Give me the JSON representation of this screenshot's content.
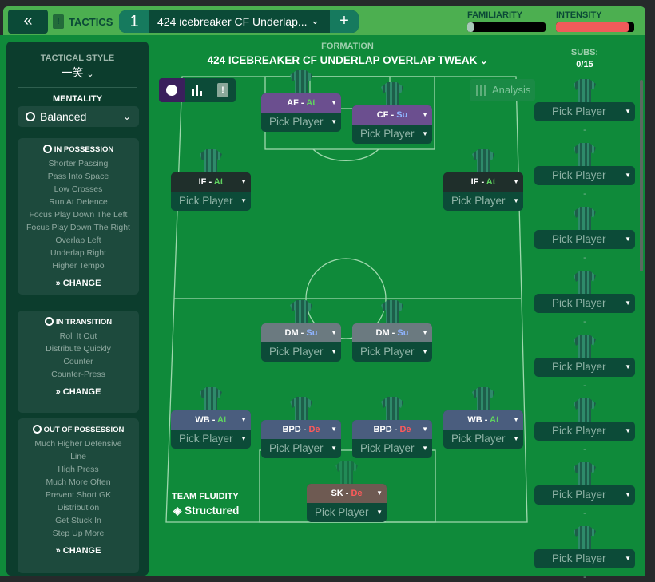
{
  "topbar": {
    "back_icon": "double-chevron-left",
    "tactics_label": "TACTICS",
    "tactic_number": "1",
    "tactic_name": "424 icebreaker CF Underlap...",
    "add_icon": "+",
    "familiarity_label": "FAMILIARITY",
    "familiarity_value": 0.08,
    "intensity_label": "INTENSITY",
    "intensity_value": 0.93,
    "intensity_color": "#f05a5a"
  },
  "left": {
    "tactical_style_label": "TACTICAL STYLE",
    "tactical_style_value": "一笑",
    "mentality_label": "MENTALITY",
    "mentality_value": "Balanced",
    "sections": [
      {
        "title": "IN POSSESSION",
        "items": [
          "Shorter Passing",
          "Pass Into Space",
          "Low Crosses",
          "Run At Defence",
          "Focus Play Down The Left",
          "Focus Play Down The Right",
          "Overlap Left",
          "Underlap Right",
          "Higher Tempo"
        ],
        "change": "CHANGE"
      },
      {
        "title": "IN TRANSITION",
        "items": [
          "Roll It Out",
          "Distribute Quickly",
          "Counter",
          "Counter-Press"
        ],
        "change": "CHANGE"
      },
      {
        "title": "OUT OF POSSESSION",
        "items": [
          "Much Higher Defensive",
          "Line",
          "High Press",
          "Much More Often",
          "Prevent Short GK",
          "Distribution",
          "Get Stuck In",
          "Step Up More"
        ],
        "change": "CHANGE"
      }
    ]
  },
  "formation": {
    "label": "FORMATION",
    "name": "424 ICEBREAKER CF UNDERLAP OVERLAP TWEAK",
    "analysis": "Analysis"
  },
  "fluidity": {
    "label": "TEAM FLUIDITY",
    "value": "Structured"
  },
  "subs": {
    "label": "SUBS:",
    "count": "0/15",
    "pick": "Pick Player",
    "dash": "-",
    "slots": 8
  },
  "duty_colors": {
    "At": "#5fd35f",
    "Su": "#8fb4ff",
    "De": "#ff5a5a"
  },
  "players": [
    {
      "role": "AF",
      "duty": "At",
      "color": "#6b4f8f",
      "pick": "Pick Player"
    },
    {
      "role": "CF",
      "duty": "Su",
      "color": "#6b4f8f",
      "pick": "Pick Player"
    },
    {
      "role": "IF",
      "duty": "At",
      "color": "#1f2f2b",
      "pick": "Pick Player"
    },
    {
      "role": "IF",
      "duty": "At",
      "color": "#1f2f2b",
      "pick": "Pick Player"
    },
    {
      "role": "DM",
      "duty": "Su",
      "color": "#6b7a80",
      "pick": "Pick Player"
    },
    {
      "role": "DM",
      "duty": "Su",
      "color": "#6b7a80",
      "pick": "Pick Player"
    },
    {
      "role": "WB",
      "duty": "At",
      "color": "#4a5d7e",
      "pick": "Pick Player"
    },
    {
      "role": "WB",
      "duty": "At",
      "color": "#4a5d7e",
      "pick": "Pick Player"
    },
    {
      "role": "BPD",
      "duty": "De",
      "color": "#4a5d7e",
      "pick": "Pick Player"
    },
    {
      "role": "BPD",
      "duty": "De",
      "color": "#4a5d7e",
      "pick": "Pick Player"
    },
    {
      "role": "SK",
      "duty": "De",
      "color": "#6e5a52",
      "pick": "Pick Player"
    }
  ]
}
